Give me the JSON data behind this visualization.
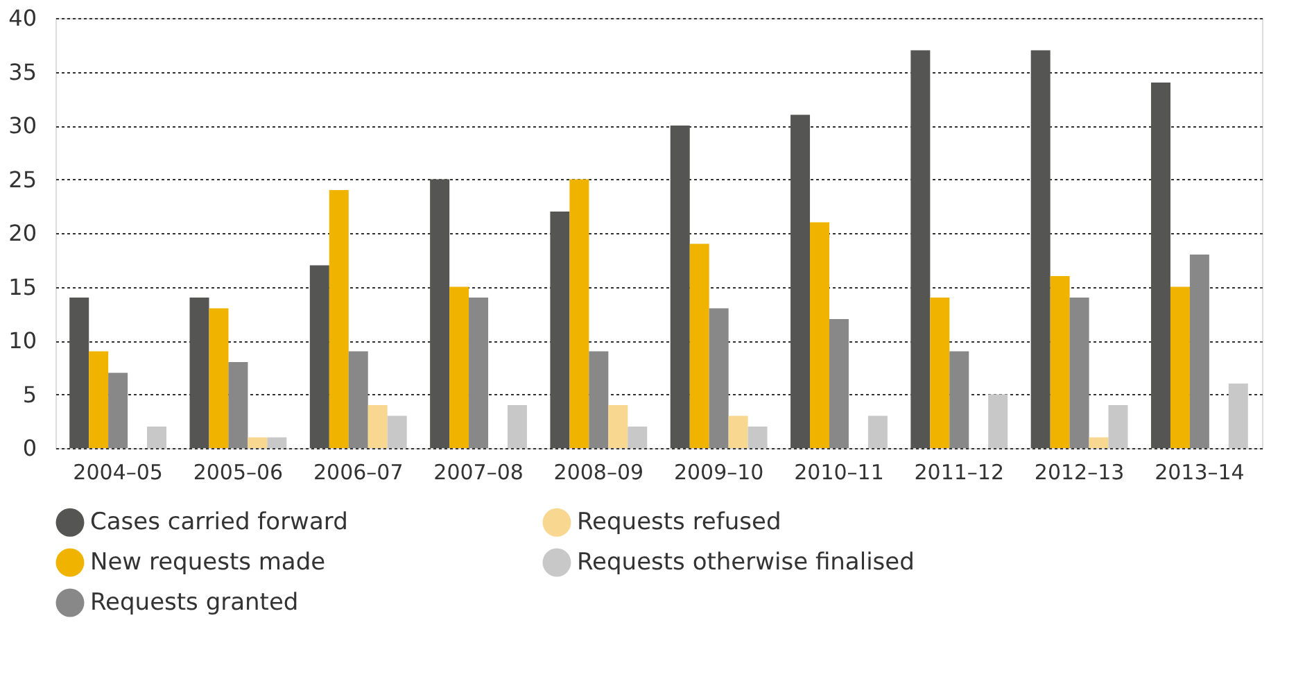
{
  "chart_data": {
    "type": "bar",
    "categories": [
      "2004–05",
      "2005–06",
      "2006–07",
      "2007–08",
      "2008–09",
      "2009–10",
      "2010–11",
      "2011–12",
      "2012–13",
      "2013–14"
    ],
    "series": [
      {
        "name": "Cases carried forward",
        "color": "#555553",
        "values": [
          14,
          14,
          17,
          25,
          22,
          30,
          31,
          37,
          37,
          34
        ]
      },
      {
        "name": "New requests made",
        "color": "#f0b400",
        "values": [
          9,
          13,
          24,
          15,
          25,
          19,
          21,
          14,
          16,
          15
        ]
      },
      {
        "name": "Requests granted",
        "color": "#888888",
        "values": [
          7,
          8,
          9,
          14,
          9,
          13,
          12,
          9,
          14,
          18
        ]
      },
      {
        "name": "Requests refused",
        "color": "#f8d890",
        "values": [
          0,
          1,
          4,
          0,
          4,
          3,
          0,
          0,
          1,
          0
        ]
      },
      {
        "name": "Requests otherwise finalised",
        "color": "#c8c8c8",
        "values": [
          2,
          1,
          3,
          4,
          2,
          2,
          3,
          5,
          4,
          6
        ]
      }
    ],
    "ylim": [
      0,
      40
    ],
    "yticks": [
      0,
      5,
      10,
      15,
      20,
      25,
      30,
      35,
      40
    ],
    "grid": "y",
    "legend": "bottom"
  }
}
